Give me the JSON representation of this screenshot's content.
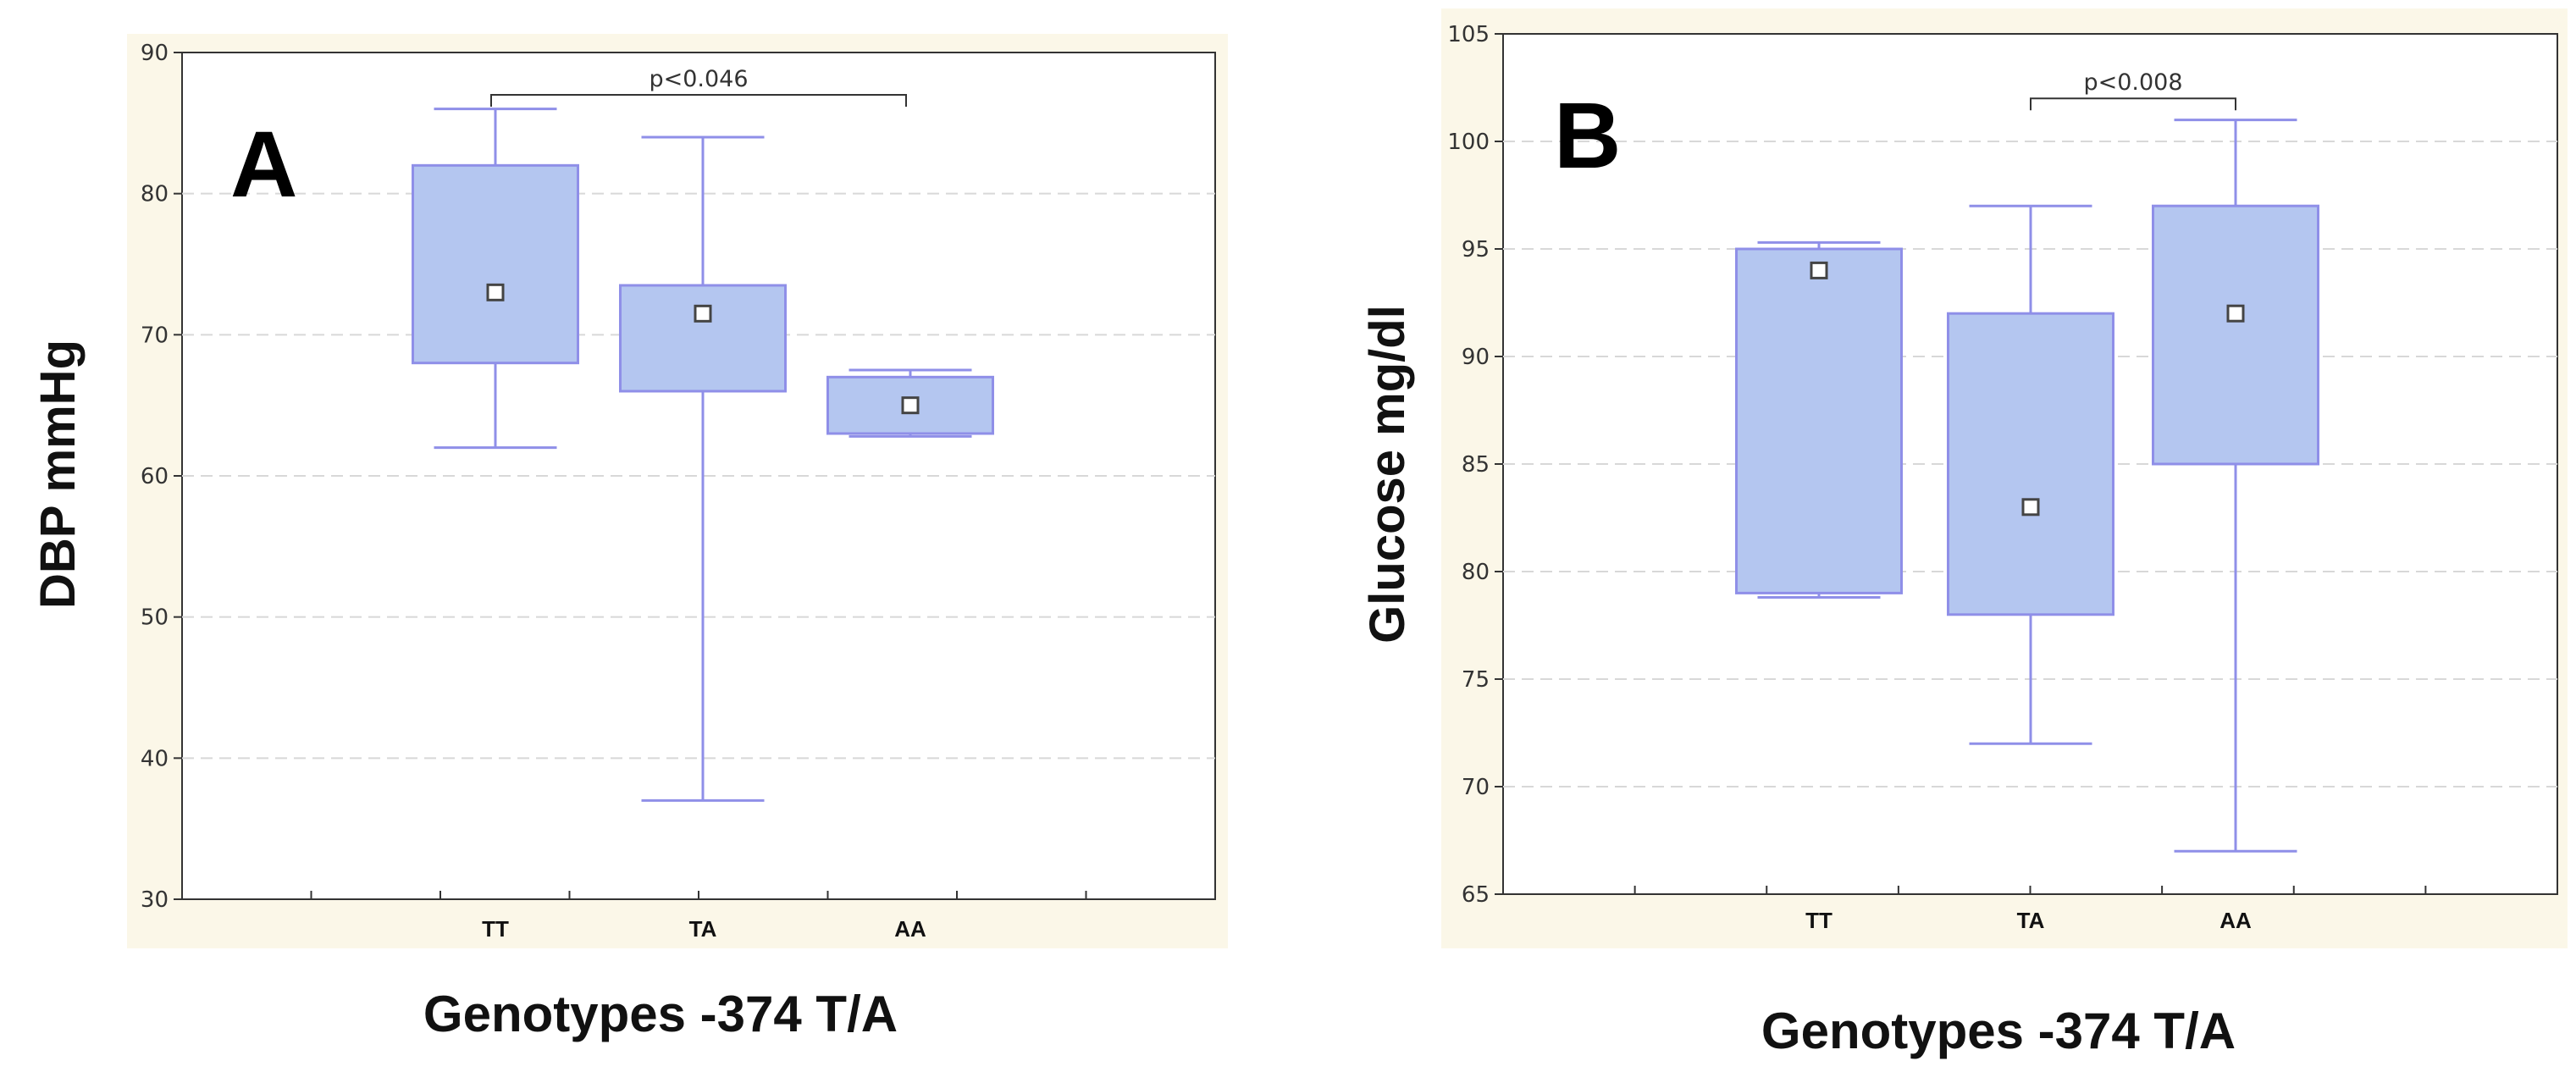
{
  "colors": {
    "panel_bg": "#fbf7e8",
    "plot_bg": "#ffffff",
    "box_fill": "#b4c6f0",
    "box_stroke": "#8f8fe8",
    "grid": "#d8d8d8",
    "axis": "#333333"
  },
  "chart_data": [
    {
      "type": "box",
      "panel_label": "A",
      "title": "",
      "xlabel": "Genotypes -374 T/A",
      "ylabel": "DBP mmHg",
      "ylim": [
        30,
        90
      ],
      "yticks": [
        30,
        40,
        50,
        60,
        70,
        80,
        90
      ],
      "grid": true,
      "categories": [
        "TT",
        "TA",
        "AA"
      ],
      "boxes": [
        {
          "category": "TT",
          "whisker_low": 62,
          "q1": 68,
          "median": 73,
          "q3": 82,
          "whisker_high": 86
        },
        {
          "category": "TA",
          "whisker_low": 37,
          "q1": 66,
          "median": 71.5,
          "q3": 73.5,
          "whisker_high": 84
        },
        {
          "category": "AA",
          "whisker_low": 62.8,
          "q1": 63,
          "median": 65,
          "q3": 67,
          "whisker_high": 67.5
        }
      ],
      "annotation": {
        "text": "p<0.046",
        "from": "TT",
        "to": "AA",
        "level": 87
      }
    },
    {
      "type": "box",
      "panel_label": "B",
      "title": "",
      "xlabel": "Genotypes -374 T/A",
      "ylabel": "Glucose mg/dl",
      "ylim": [
        65,
        105
      ],
      "yticks": [
        65,
        70,
        75,
        80,
        85,
        90,
        95,
        100,
        105
      ],
      "grid": true,
      "categories": [
        "TT",
        "TA",
        "AA"
      ],
      "boxes": [
        {
          "category": "TT",
          "whisker_low": 78.8,
          "q1": 79,
          "median": 94,
          "q3": 95,
          "whisker_high": 95.3
        },
        {
          "category": "TA",
          "whisker_low": 72,
          "q1": 78,
          "median": 83,
          "q3": 92,
          "whisker_high": 97
        },
        {
          "category": "AA",
          "whisker_low": 67,
          "q1": 85,
          "median": 92,
          "q3": 97,
          "whisker_high": 101
        }
      ],
      "annotation": {
        "text": "p<0.008",
        "from": "TA",
        "to": "AA",
        "level": 102
      }
    }
  ]
}
